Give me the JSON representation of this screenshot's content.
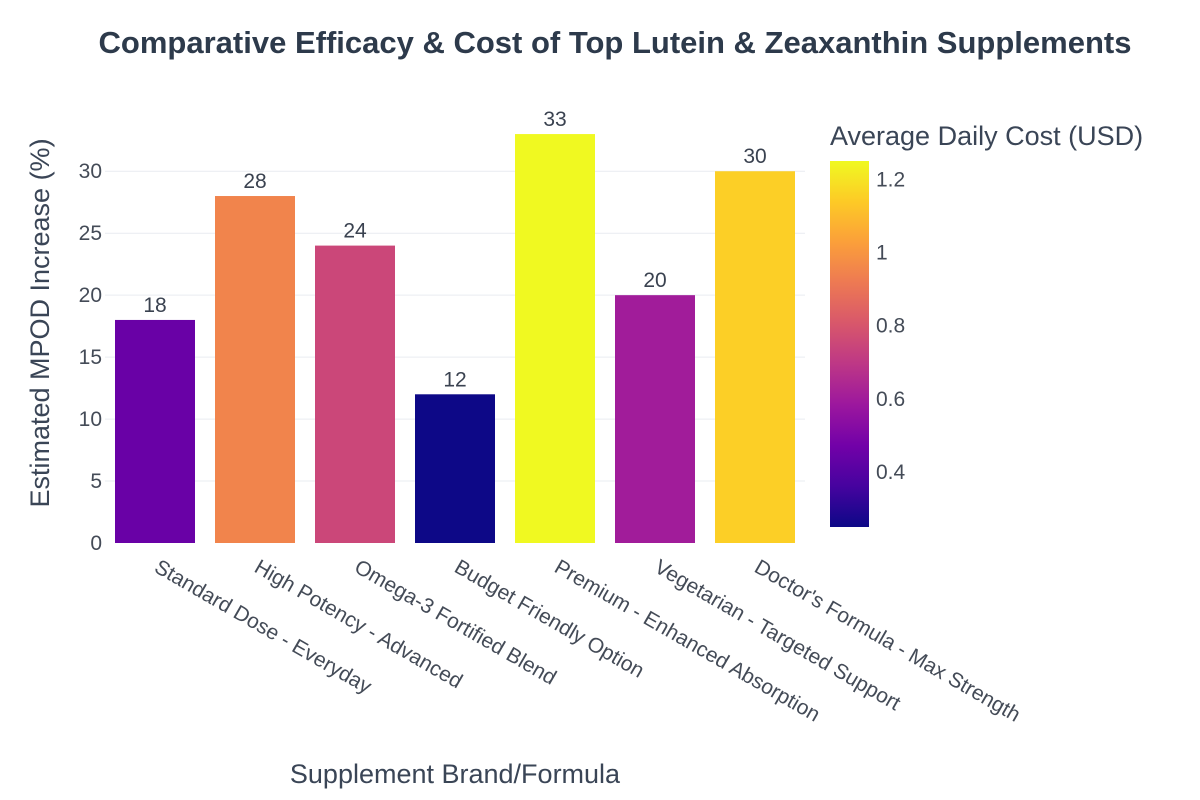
{
  "chart_data": {
    "type": "bar",
    "title": "Comparative Efficacy & Cost of Top Lutein & Zeaxanthin Supplements",
    "xlabel": "Supplement Brand/Formula",
    "ylabel": "Estimated MPOD Increase (%)",
    "categories": [
      "Standard Dose - Everyday",
      "High Potency - Advanced",
      "Omega-3 Fortified Blend",
      "Budget Friendly Option",
      "Premium - Enhanced Absorption",
      "Vegetarian - Targeted Support",
      "Doctor's Formula - Max Strength"
    ],
    "values": [
      18,
      28,
      24,
      12,
      33,
      20,
      30
    ],
    "data_labels": [
      "18",
      "28",
      "24",
      "12",
      "33",
      "20",
      "30"
    ],
    "color_values": [
      0.45,
      0.95,
      0.75,
      0.25,
      1.25,
      0.6,
      1.15
    ],
    "ylim": [
      0,
      34.7
    ],
    "yticks": [
      0,
      5,
      10,
      15,
      20,
      25,
      30
    ],
    "colorbar": {
      "title": "Average Daily Cost (USD)",
      "range": [
        0.25,
        1.25
      ],
      "ticks": [
        0.4,
        0.6,
        0.8,
        1,
        1.2
      ],
      "tick_labels": [
        "0.4",
        "0.6",
        "0.8",
        "1",
        "1.2"
      ]
    },
    "colorscale": [
      "#0d0887",
      "#46039f",
      "#7201a8",
      "#9c179e",
      "#bd3786",
      "#d8576b",
      "#ed7953",
      "#fb9f3a",
      "#fdca26",
      "#f0f921"
    ],
    "grid": true,
    "legend": "none"
  }
}
